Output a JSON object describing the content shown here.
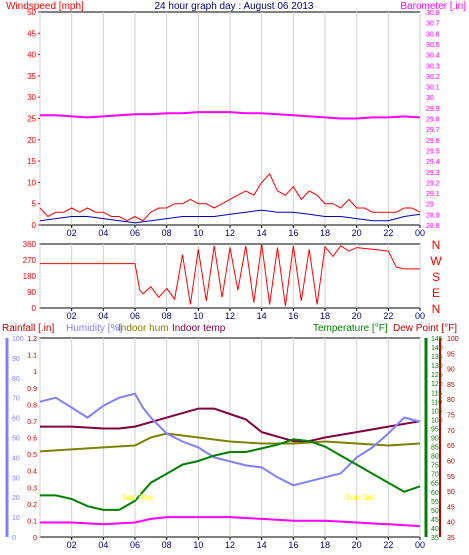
{
  "title": "24 hour graph day : August 06 2013",
  "colors": {
    "wind": "#ff0000",
    "wind_avg": "#0000c0",
    "baro": "#ff00ff",
    "wind_dir": "#ff0000",
    "rain": "#c00000",
    "humidity": "#8080ff",
    "indoor_hum": "#808000",
    "indoor_temp": "#800040",
    "temperature": "#008000",
    "dew_point": "#c00000",
    "sunrise": "#ffff00",
    "axis_rain": "#8080ff",
    "axis_temp": "#008000",
    "axis_dew": "#c00000"
  },
  "chart_data": [
    {
      "type": "line",
      "name": "wind-baro",
      "left_label": "Windspeed [mph]",
      "right_label": "Barometer [.in]",
      "left_ylim": [
        0,
        50
      ],
      "left_ticks": [
        "0",
        "5",
        "10",
        "15",
        "20",
        "25",
        "30",
        "35",
        "40",
        "45",
        "50"
      ],
      "right_ylim": [
        28.8,
        30.8
      ],
      "right_ticks": [
        "28.8",
        "28.9",
        "29",
        "29.1",
        "29.2",
        "29.3",
        "29.4",
        "29.5",
        "29.6",
        "29.7",
        "29.8",
        "29.9",
        "30",
        "30.1",
        "30.2",
        "30.3",
        "30.4",
        "30.5",
        "30.6",
        "30.7",
        "30.8"
      ],
      "x_ticks": [
        "02",
        "04",
        "06",
        "08",
        "10",
        "12",
        "14",
        "16",
        "18",
        "20",
        "22",
        "00"
      ],
      "series": [
        {
          "key": "gust",
          "x": [
            0,
            0.5,
            1,
            1.5,
            2,
            2.5,
            3,
            3.5,
            4,
            4.5,
            5,
            5.5,
            6,
            6.5,
            7,
            7.5,
            8,
            8.5,
            9,
            9.5,
            10,
            10.5,
            11,
            11.5,
            12,
            12.5,
            13,
            13.5,
            14,
            14.5,
            15,
            15.5,
            16,
            16.5,
            17,
            17.5,
            18,
            18.5,
            19,
            19.5,
            20,
            20.5,
            21,
            21.5,
            22,
            22.5,
            23,
            23.5,
            24
          ],
          "y": [
            4,
            2,
            3,
            3,
            4,
            3,
            4,
            3,
            3,
            2,
            2,
            1,
            2,
            1,
            3,
            4,
            4,
            5,
            5,
            6,
            5,
            5,
            4,
            5,
            6,
            7,
            8,
            7,
            10,
            12,
            8,
            7,
            9,
            6,
            8,
            7,
            5,
            5,
            4,
            6,
            4,
            4,
            3,
            3,
            3,
            3,
            4,
            4,
            3
          ]
        },
        {
          "key": "avg",
          "x": [
            0,
            1,
            2,
            3,
            4,
            5,
            6,
            7,
            8,
            9,
            10,
            11,
            12,
            13,
            14,
            15,
            16,
            17,
            18,
            19,
            20,
            21,
            22,
            23,
            24
          ],
          "y": [
            1,
            1.5,
            2,
            2,
            1.5,
            1,
            0.5,
            1,
            1.5,
            2,
            2,
            2,
            2.5,
            3,
            3.5,
            3,
            3,
            2.5,
            2,
            2,
            1.5,
            1,
            1,
            2,
            2.5
          ]
        },
        {
          "key": "baro",
          "x": [
            0,
            1,
            2,
            3,
            4,
            5,
            6,
            7,
            8,
            9,
            10,
            11,
            12,
            13,
            14,
            15,
            16,
            17,
            18,
            19,
            20,
            21,
            22,
            23,
            24
          ],
          "y": [
            29.83,
            29.83,
            29.82,
            29.81,
            29.82,
            29.83,
            29.84,
            29.84,
            29.85,
            29.85,
            29.86,
            29.86,
            29.86,
            29.85,
            29.85,
            29.84,
            29.83,
            29.82,
            29.81,
            29.8,
            29.8,
            29.81,
            29.81,
            29.82,
            29.81
          ]
        }
      ]
    },
    {
      "type": "scatter",
      "name": "wind-direction",
      "ylim": [
        0,
        360
      ],
      "y_ticks": [
        "0",
        "90",
        "180",
        "270",
        "360"
      ],
      "right_labels": [
        "N",
        "W",
        "S",
        "E",
        "N"
      ],
      "x_ticks": [
        "02",
        "04",
        "06",
        "08",
        "10",
        "12",
        "14",
        "16",
        "18",
        "20",
        "22",
        "00"
      ],
      "x": [
        0,
        1,
        2,
        3,
        4,
        5,
        6,
        6.3,
        6.5,
        7,
        7.5,
        8,
        8.5,
        9,
        9.5,
        10,
        10.5,
        11,
        11.5,
        12,
        12.5,
        13,
        13.5,
        14,
        14.5,
        15,
        15.5,
        16,
        16.5,
        17,
        17.5,
        18,
        18.5,
        19,
        19.5,
        20,
        21,
        22,
        22.5,
        23,
        24
      ],
      "y": [
        250,
        250,
        250,
        250,
        250,
        250,
        250,
        100,
        80,
        120,
        60,
        110,
        50,
        300,
        20,
        330,
        40,
        350,
        60,
        340,
        100,
        350,
        30,
        360,
        20,
        340,
        10,
        350,
        40,
        330,
        20,
        345,
        290,
        350,
        320,
        340,
        330,
        320,
        230,
        220,
        220
      ]
    },
    {
      "type": "line",
      "name": "rain-humidity-temp",
      "labels": [
        "Rainfall [.in]",
        "Humidity [%]",
        "Indoor hum",
        "Indoor temp",
        "Temperature [°F]",
        "Dew Point [°F]"
      ],
      "rain_ticks": [
        "0",
        "0.1",
        "0.2",
        "0.3",
        "0.4",
        "0.5",
        "0.6",
        "0.7",
        "0.8",
        "0.9",
        "1",
        "1.1",
        "1.2"
      ],
      "hum_ticks": [
        "0",
        "10",
        "20",
        "30",
        "40",
        "50",
        "60",
        "70",
        "80",
        "90",
        "100"
      ],
      "temp_ticks": [
        "35",
        "40",
        "45",
        "50",
        "55",
        "60",
        "65",
        "70",
        "75",
        "80",
        "85",
        "90",
        "95",
        "100",
        "105",
        "110",
        "115",
        "120",
        "125",
        "130",
        "135",
        "140",
        "145"
      ],
      "dew_ticks": [
        "35",
        "40",
        "45",
        "50",
        "55",
        "60",
        "65",
        "70",
        "75",
        "80",
        "85",
        "90",
        "95",
        "100"
      ],
      "temp_ylim": [
        35,
        145
      ],
      "sun_labels": [
        "Sun Rise",
        "Sun Set"
      ],
      "sun_times": [
        6.2,
        20.2
      ],
      "x_ticks": [
        "02",
        "04",
        "06",
        "08",
        "10",
        "12",
        "14",
        "16",
        "18",
        "20",
        "22",
        "00"
      ],
      "series": [
        {
          "key": "humidity",
          "x": [
            0,
            1,
            2,
            3,
            4,
            5,
            6,
            6.5,
            7,
            8,
            9,
            10,
            11,
            12,
            13,
            14,
            15,
            16,
            17,
            18,
            19,
            20,
            21,
            22,
            23,
            24
          ],
          "y": [
            68,
            70,
            65,
            60,
            66,
            70,
            72,
            65,
            60,
            52,
            48,
            45,
            40,
            38,
            36,
            35,
            30,
            26,
            28,
            30,
            32,
            40,
            45,
            52,
            60,
            58
          ]
        },
        {
          "key": "indoor_hum",
          "x": [
            0,
            2,
            4,
            6,
            7,
            8,
            10,
            12,
            14,
            16,
            18,
            20,
            22,
            24
          ],
          "y": [
            43,
            44,
            45,
            46,
            50,
            52,
            50,
            48,
            47,
            47,
            48,
            47,
            46,
            47
          ]
        },
        {
          "key": "indoor_temp",
          "x": [
            0,
            2,
            4,
            5,
            6,
            8,
            10,
            11,
            12,
            13,
            14,
            16,
            17,
            18,
            20,
            22,
            24
          ],
          "y": [
            96,
            96,
            95,
            95,
            96,
            101,
            106,
            106,
            103,
            100,
            93,
            88,
            88,
            90,
            93,
            96,
            99
          ]
        },
        {
          "key": "temperature",
          "x": [
            0,
            1,
            2,
            3,
            4,
            5,
            6,
            7,
            8,
            9,
            10,
            11,
            12,
            13,
            14,
            15,
            16,
            17,
            18,
            19,
            20,
            21,
            22,
            23,
            24
          ],
          "y": [
            58,
            58,
            56,
            52,
            50,
            50,
            55,
            65,
            70,
            75,
            77,
            80,
            82,
            82,
            84,
            86,
            89,
            88,
            85,
            80,
            75,
            70,
            65,
            60,
            63
          ]
        },
        {
          "key": "dew_point",
          "x": [
            0,
            2,
            4,
            6,
            7,
            8,
            10,
            12,
            14,
            16,
            18,
            20,
            22,
            24
          ],
          "y": [
            43,
            43,
            42,
            43,
            45,
            46,
            46,
            46,
            45,
            44,
            44,
            43,
            42,
            41
          ]
        }
      ]
    }
  ]
}
